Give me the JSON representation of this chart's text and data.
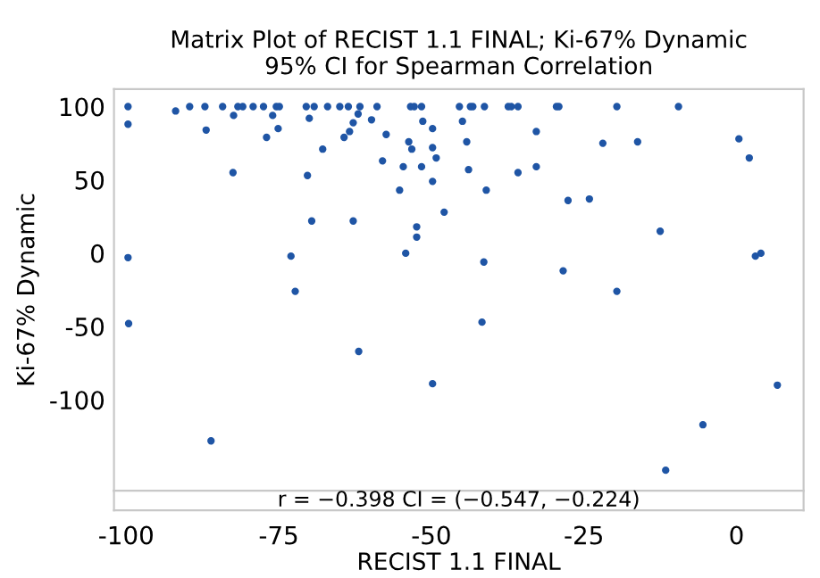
{
  "chart_data": {
    "type": "scatter",
    "title": "Matrix Plot of RECIST 1.1 FINAL; Ki-67% Dynamic\n95% CI for Spearman Correlation",
    "xlabel": "RECIST 1.1 FINAL",
    "ylabel": "Ki-67% Dynamic",
    "annotations": [
      "r = −0.398 CI = (−0.547, −0.224)"
    ],
    "xlim": [
      -102,
      11
    ],
    "ylim": [
      -162,
      112
    ],
    "xticks": [
      -100,
      -75,
      -50,
      -25,
      0
    ],
    "yticks": [
      -100,
      -50,
      0,
      50,
      100
    ],
    "grid": false,
    "marker": "circle",
    "series": [
      {
        "color": "#1f55a5",
        "x": [
          -99.7,
          -99.7,
          -91.9,
          -89.6,
          -87.1,
          -86.9,
          -84.2,
          -82.4,
          -82.5,
          -81.7,
          -80.9,
          -79.2,
          -77.5,
          -76,
          -77,
          -75.4,
          -74.9,
          -75.1,
          -70.5,
          -69.2,
          -70,
          -67.8,
          -70.3,
          -69.6,
          -67,
          -65,
          -63.6,
          -61.7,
          -62,
          -62.8,
          -63.4,
          -64.3,
          -62.8,
          -59.8,
          -58.9,
          -57.4,
          -58,
          -53.4,
          -52.8,
          -51.6,
          -51.4,
          -53.7,
          -53.2,
          -54.6,
          -51.6,
          -49.8,
          -49.8,
          -49.2,
          -49.8,
          -55.2,
          -47.9,
          -52.4,
          -52.4,
          -54.2,
          -45.4,
          -44.9,
          -99.7,
          -73,
          -72.3,
          -99.6,
          -86.1,
          -61.9,
          -49.8,
          -43.6,
          -43.2,
          -41.3,
          -37.4,
          -36.9,
          -35.8,
          -29.5,
          -29.1,
          -19.6,
          -9.5,
          -32.8,
          -44.2,
          -21.9,
          -16.2,
          0.4,
          2.1,
          -43.9,
          -32.8,
          -35.8,
          -41,
          -27.6,
          -24.1,
          -12.5,
          -41.4,
          -28.4,
          -19.6,
          3.1,
          4.0,
          -41.7,
          6.7,
          -5.5,
          -11.6
        ],
        "values": [
          100,
          88,
          97,
          100,
          100,
          84,
          100,
          94,
          55,
          100,
          100,
          100,
          100,
          94,
          79,
          100,
          100,
          85,
          100,
          100,
          92,
          71,
          53,
          22,
          100,
          100,
          100,
          100,
          95,
          89,
          83,
          79,
          22,
          91,
          100,
          81,
          63,
          100,
          100,
          100,
          90,
          76,
          71,
          59,
          59,
          85,
          72,
          65,
          49,
          43,
          28,
          18,
          11,
          0,
          100,
          90,
          -3,
          -2,
          -26,
          -48,
          -128,
          -67,
          -89,
          100,
          100,
          100,
          100,
          100,
          100,
          100,
          100,
          100,
          100,
          83,
          76,
          75,
          76,
          78,
          65,
          57,
          59,
          55,
          43,
          36,
          37,
          15,
          -6,
          -12,
          -26,
          -2,
          0,
          -47,
          -90,
          -117,
          -148
        ]
      }
    ]
  }
}
